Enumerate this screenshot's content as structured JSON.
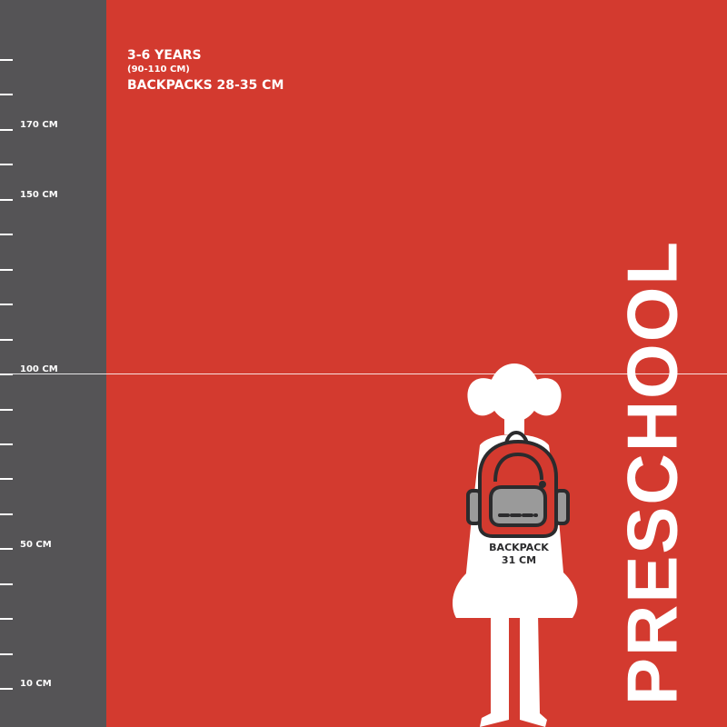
{
  "ruler": {
    "labels": [
      {
        "text": "170 CM",
        "value": 170
      },
      {
        "text": "150 CM",
        "value": 150
      },
      {
        "text": "100 CM",
        "value": 100
      },
      {
        "text": "50 CM",
        "value": 50
      },
      {
        "text": "10 CM",
        "value": 10
      }
    ]
  },
  "info": {
    "age": "3-6 YEARS",
    "height_range": "(90-110 CM)",
    "backpacks": "BACKPACKS 28-35 CM"
  },
  "title": "PRESCHOOL",
  "backpack": {
    "label": "BACKPACK",
    "size": "31 CM"
  },
  "colors": {
    "background": "#d33a2f",
    "ruler": "#555456",
    "text": "#ffffff",
    "backpack_outline": "#2b2b2d",
    "pocket": "#9a9a9a"
  }
}
